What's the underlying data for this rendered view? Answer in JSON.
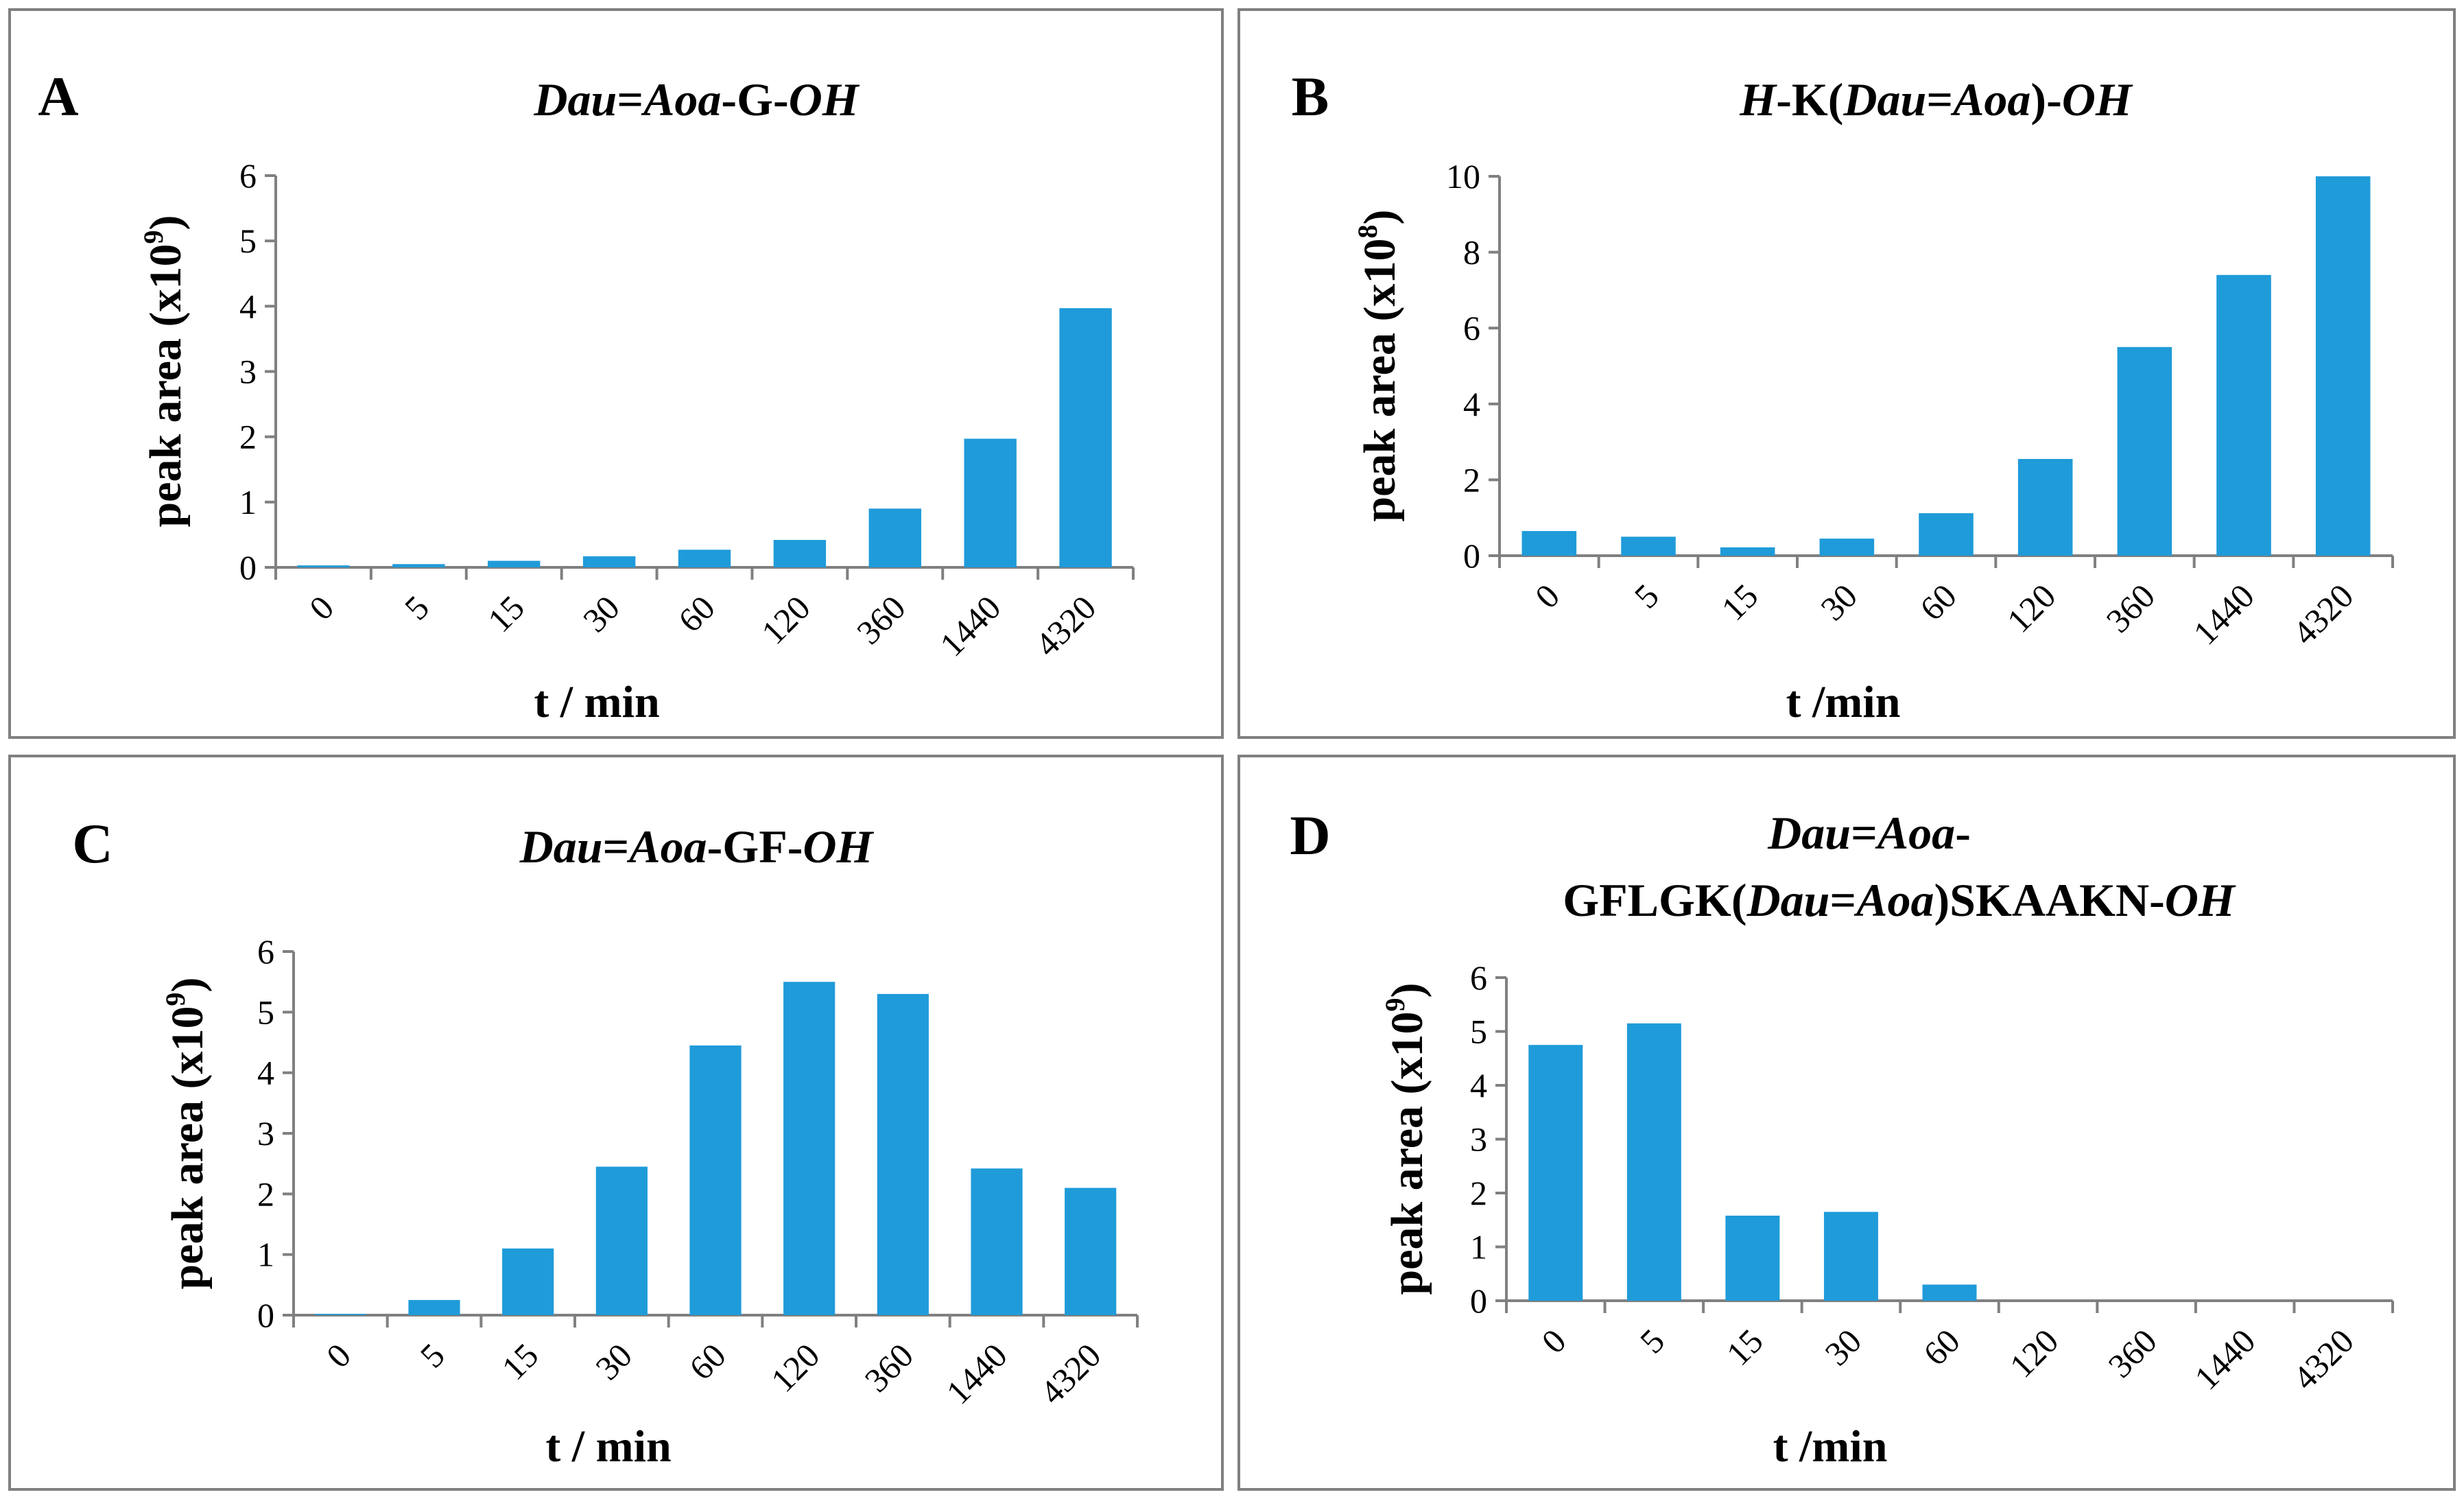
{
  "colors": {
    "bar": "#1F9BD9",
    "axis": "#808080",
    "border": "#808080"
  },
  "chart_data": [
    {
      "id": "A",
      "type": "bar",
      "panel_letter": "A",
      "title_parts": [
        {
          "text": "Dau",
          "italic": true
        },
        {
          "text": "=",
          "italic": false
        },
        {
          "text": "Aoa",
          "italic": true
        },
        {
          "text": "-G-",
          "italic": false
        },
        {
          "text": "OH",
          "italic": true
        }
      ],
      "title_lines": [
        [
          {
            "text": "Dau",
            "italic": true
          },
          {
            "text": "=",
            "italic": false
          },
          {
            "text": "Aoa",
            "italic": true
          },
          {
            "text": "-G-",
            "italic": false
          },
          {
            "text": "OH",
            "italic": true
          }
        ]
      ],
      "ylabel_main": "peak area (x10",
      "ylabel_exp": "9",
      "ylabel_close": ")",
      "xlabel": "t / min",
      "categories": [
        "0",
        "5",
        "15",
        "30",
        "60",
        "120",
        "360",
        "1440",
        "4320"
      ],
      "values": [
        0.03,
        0.05,
        0.1,
        0.17,
        0.27,
        0.42,
        0.9,
        1.97,
        3.97
      ],
      "yticks": [
        "0",
        "1",
        "2",
        "3",
        "4",
        "5",
        "6"
      ],
      "ylim": [
        0,
        6
      ]
    },
    {
      "id": "B",
      "type": "bar",
      "panel_letter": "B",
      "title_lines": [
        [
          {
            "text": "H",
            "italic": true
          },
          {
            "text": "-K(",
            "italic": false
          },
          {
            "text": "Dau",
            "italic": true
          },
          {
            "text": "=",
            "italic": false
          },
          {
            "text": "Aoa",
            "italic": true
          },
          {
            "text": ")-",
            "italic": false
          },
          {
            "text": "OH",
            "italic": true
          }
        ]
      ],
      "ylabel_main": "peak area (x10",
      "ylabel_exp": "8",
      "ylabel_close": ")",
      "xlabel": "t /min",
      "categories": [
        "0",
        "5",
        "15",
        "30",
        "60",
        "120",
        "360",
        "1440",
        "4320"
      ],
      "values": [
        0.65,
        0.5,
        0.22,
        0.45,
        1.12,
        2.55,
        5.5,
        7.4,
        10.0
      ],
      "yticks": [
        "0",
        "2",
        "4",
        "6",
        "8",
        "10"
      ],
      "ylim": [
        0,
        10
      ]
    },
    {
      "id": "C",
      "type": "bar",
      "panel_letter": "C",
      "title_lines": [
        [
          {
            "text": "Dau",
            "italic": true
          },
          {
            "text": "=",
            "italic": false
          },
          {
            "text": "Aoa",
            "italic": true
          },
          {
            "text": "-GF-",
            "italic": false
          },
          {
            "text": "OH",
            "italic": true
          }
        ]
      ],
      "ylabel_main": "peak area (x10",
      "ylabel_exp": "9",
      "ylabel_close": ")",
      "xlabel": "t / min",
      "categories": [
        "0",
        "5",
        "15",
        "30",
        "60",
        "120",
        "360",
        "1440",
        "4320"
      ],
      "values": [
        0.02,
        0.25,
        1.1,
        2.45,
        4.45,
        5.5,
        5.3,
        2.42,
        2.1
      ],
      "yticks": [
        "0",
        "1",
        "2",
        "3",
        "4",
        "5",
        "6"
      ],
      "ylim": [
        0,
        6
      ]
    },
    {
      "id": "D",
      "type": "bar",
      "panel_letter": "D",
      "title_lines": [
        [
          {
            "text": "Dau",
            "italic": true
          },
          {
            "text": "=",
            "italic": false
          },
          {
            "text": "Aoa",
            "italic": true
          },
          {
            "text": "-",
            "italic": false
          }
        ],
        [
          {
            "text": "GFLGK(",
            "italic": false
          },
          {
            "text": "Dau",
            "italic": true
          },
          {
            "text": "=",
            "italic": false
          },
          {
            "text": "Aoa",
            "italic": true
          },
          {
            "text": ")SKAAKN-",
            "italic": false
          },
          {
            "text": "OH",
            "italic": true
          }
        ]
      ],
      "ylabel_main": "peak area (x10",
      "ylabel_exp": "9",
      "ylabel_close": ")",
      "xlabel": "t /min",
      "categories": [
        "0",
        "5",
        "15",
        "30",
        "60",
        "120",
        "360",
        "1440",
        "4320"
      ],
      "values": [
        4.75,
        5.15,
        1.58,
        1.65,
        0.3,
        0,
        0,
        0,
        0
      ],
      "yticks": [
        "0",
        "1",
        "2",
        "3",
        "4",
        "5",
        "6"
      ],
      "ylim": [
        0,
        6
      ]
    }
  ]
}
